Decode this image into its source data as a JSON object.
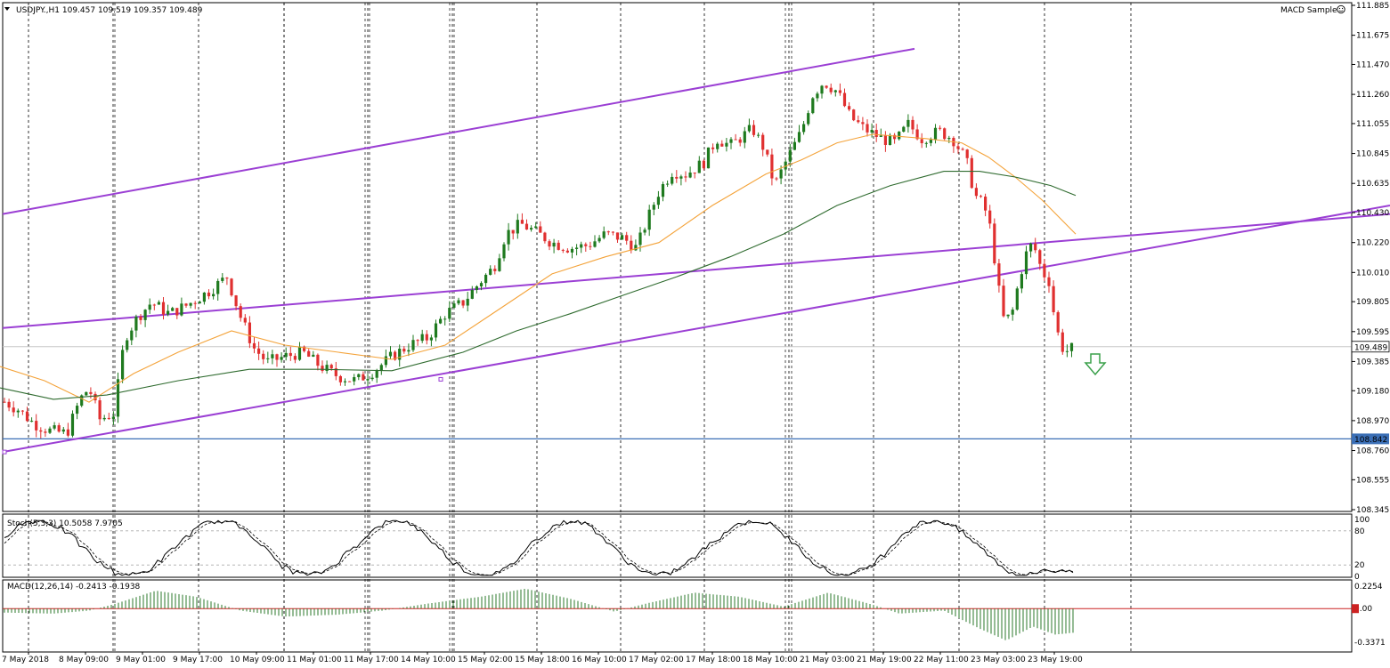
{
  "header": {
    "symbol_line": "USDJPY.,H1  109.457 109.519 109.357 109.489",
    "indicator_name": "MACD Sample"
  },
  "stoch_label": "Stoch(5,3,3) 10.5058 7.9705",
  "macd_label": "MACD(12,26,14) -0.2413 -0.1938",
  "colors": {
    "bull": "#1f7a1f",
    "bear": "#e03030",
    "channel": "#9b3fd4",
    "ma_fast": "#f4a33a",
    "ma_slow": "#2f6b2f",
    "support": "#3b6fb6",
    "arrow": "#3aa04a",
    "macd_hist": "#2b7a2b",
    "macd_signal": "#cc2222"
  },
  "price_axis_ticks": [
    "111.885",
    "111.675",
    "111.470",
    "111.260",
    "111.055",
    "110.845",
    "110.635",
    "110.430",
    "110.220",
    "110.010",
    "109.805",
    "109.595",
    "109.385",
    "109.180",
    "108.970",
    "108.760",
    "108.555",
    "108.345"
  ],
  "current_price_label": "109.489",
  "support_label": "108.842",
  "stoch_ticks": [
    "100",
    "80",
    "20",
    "0"
  ],
  "macd_ticks": [
    "0.2254",
    "0.00",
    "-0.3371"
  ],
  "time_labels": [
    "7 May 2018",
    "8 May 09:00",
    "9 May 01:00",
    "9 May 17:00",
    "10 May 09:00",
    "11 May 01:00",
    "11 May 17:00",
    "14 May 10:00",
    "15 May 02:00",
    "15 May 18:00",
    "16 May 10:00",
    "17 May 02:00",
    "17 May 18:00",
    "18 May 10:00",
    "21 May 03:00",
    "21 May 19:00",
    "22 May 11:00",
    "23 May 03:00",
    "23 May 19:00"
  ],
  "chart_data": {
    "type": "candlestick",
    "symbol": "USDJPY",
    "timeframe": "H1",
    "ylim": [
      108.345,
      111.885
    ],
    "current_price": 109.489,
    "support_level": 108.842,
    "price_path": [
      [
        0,
        109.12
      ],
      [
        20,
        109.05
      ],
      [
        38,
        108.95
      ],
      [
        55,
        108.9
      ],
      [
        75,
        108.88
      ],
      [
        90,
        109.12
      ],
      [
        100,
        109.2
      ],
      [
        112,
        108.98
      ],
      [
        128,
        109.02
      ],
      [
        140,
        109.55
      ],
      [
        155,
        109.7
      ],
      [
        170,
        109.8
      ],
      [
        190,
        109.72
      ],
      [
        210,
        109.78
      ],
      [
        235,
        109.88
      ],
      [
        255,
        109.98
      ],
      [
        270,
        109.7
      ],
      [
        285,
        109.48
      ],
      [
        300,
        109.38
      ],
      [
        320,
        109.42
      ],
      [
        340,
        109.45
      ],
      [
        360,
        109.35
      ],
      [
        380,
        109.28
      ],
      [
        400,
        109.25
      ],
      [
        420,
        109.32
      ],
      [
        440,
        109.42
      ],
      [
        460,
        109.5
      ],
      [
        480,
        109.55
      ],
      [
        500,
        109.72
      ],
      [
        520,
        109.8
      ],
      [
        540,
        109.95
      ],
      [
        555,
        110.05
      ],
      [
        568,
        110.28
      ],
      [
        585,
        110.35
      ],
      [
        600,
        110.3
      ],
      [
        620,
        110.22
      ],
      [
        640,
        110.18
      ],
      [
        660,
        110.2
      ],
      [
        680,
        110.28
      ],
      [
        700,
        110.25
      ],
      [
        715,
        110.18
      ],
      [
        725,
        110.35
      ],
      [
        740,
        110.58
      ],
      [
        755,
        110.72
      ],
      [
        770,
        110.7
      ],
      [
        790,
        110.78
      ],
      [
        805,
        110.95
      ],
      [
        820,
        110.9
      ],
      [
        845,
        111.02
      ],
      [
        858,
        110.88
      ],
      [
        870,
        110.62
      ],
      [
        885,
        110.82
      ],
      [
        900,
        111.0
      ],
      [
        912,
        111.25
      ],
      [
        925,
        111.35
      ],
      [
        940,
        111.28
      ],
      [
        955,
        111.1
      ],
      [
        970,
        111.02
      ],
      [
        990,
        110.95
      ],
      [
        1005,
        110.92
      ],
      [
        1020,
        111.05
      ],
      [
        1035,
        110.95
      ],
      [
        1055,
        111.0
      ],
      [
        1070,
        110.95
      ],
      [
        1085,
        110.8
      ],
      [
        1095,
        110.55
      ],
      [
        1105,
        110.48
      ],
      [
        1113,
        110.3
      ],
      [
        1120,
        109.95
      ],
      [
        1128,
        109.65
      ],
      [
        1138,
        109.75
      ],
      [
        1145,
        109.98
      ],
      [
        1153,
        110.15
      ],
      [
        1160,
        110.22
      ],
      [
        1170,
        110.02
      ],
      [
        1178,
        109.95
      ],
      [
        1186,
        109.62
      ],
      [
        1195,
        109.45
      ],
      [
        1208,
        109.49
      ]
    ],
    "ma_fast_path": [
      [
        0,
        109.35
      ],
      [
        50,
        109.25
      ],
      [
        100,
        109.1
      ],
      [
        150,
        109.3
      ],
      [
        200,
        109.45
      ],
      [
        260,
        109.6
      ],
      [
        320,
        109.5
      ],
      [
        380,
        109.45
      ],
      [
        440,
        109.4
      ],
      [
        500,
        109.5
      ],
      [
        560,
        109.75
      ],
      [
        620,
        110.0
      ],
      [
        680,
        110.12
      ],
      [
        740,
        110.22
      ],
      [
        800,
        110.48
      ],
      [
        860,
        110.7
      ],
      [
        900,
        110.8
      ],
      [
        940,
        110.92
      ],
      [
        980,
        110.98
      ],
      [
        1040,
        110.95
      ],
      [
        1080,
        110.92
      ],
      [
        1110,
        110.82
      ],
      [
        1140,
        110.68
      ],
      [
        1170,
        110.52
      ],
      [
        1208,
        110.28
      ]
    ],
    "ma_slow_path": [
      [
        0,
        109.2
      ],
      [
        60,
        109.12
      ],
      [
        120,
        109.15
      ],
      [
        200,
        109.25
      ],
      [
        280,
        109.33
      ],
      [
        360,
        109.33
      ],
      [
        440,
        109.32
      ],
      [
        520,
        109.45
      ],
      [
        580,
        109.6
      ],
      [
        640,
        109.72
      ],
      [
        700,
        109.85
      ],
      [
        760,
        109.98
      ],
      [
        820,
        110.12
      ],
      [
        880,
        110.28
      ],
      [
        940,
        110.48
      ],
      [
        1000,
        110.62
      ],
      [
        1060,
        110.72
      ],
      [
        1100,
        110.72
      ],
      [
        1140,
        110.68
      ],
      [
        1180,
        110.62
      ],
      [
        1208,
        110.55
      ]
    ],
    "channel_upper": [
      [
        3,
        110.42
      ],
      [
        1027,
        111.58
      ]
    ],
    "channel_lower": [
      [
        3,
        108.75
      ],
      [
        1561,
        110.48
      ]
    ],
    "stoch": {
      "k": 10.5058,
      "d": 7.9705,
      "levels": [
        20,
        80
      ],
      "ylim": [
        0,
        100
      ]
    },
    "macd": {
      "fast": 12,
      "slow": 26,
      "signal": 14,
      "main": -0.2413,
      "signal_value": -0.1938,
      "ylim": [
        -0.3371,
        0.2254
      ]
    }
  }
}
